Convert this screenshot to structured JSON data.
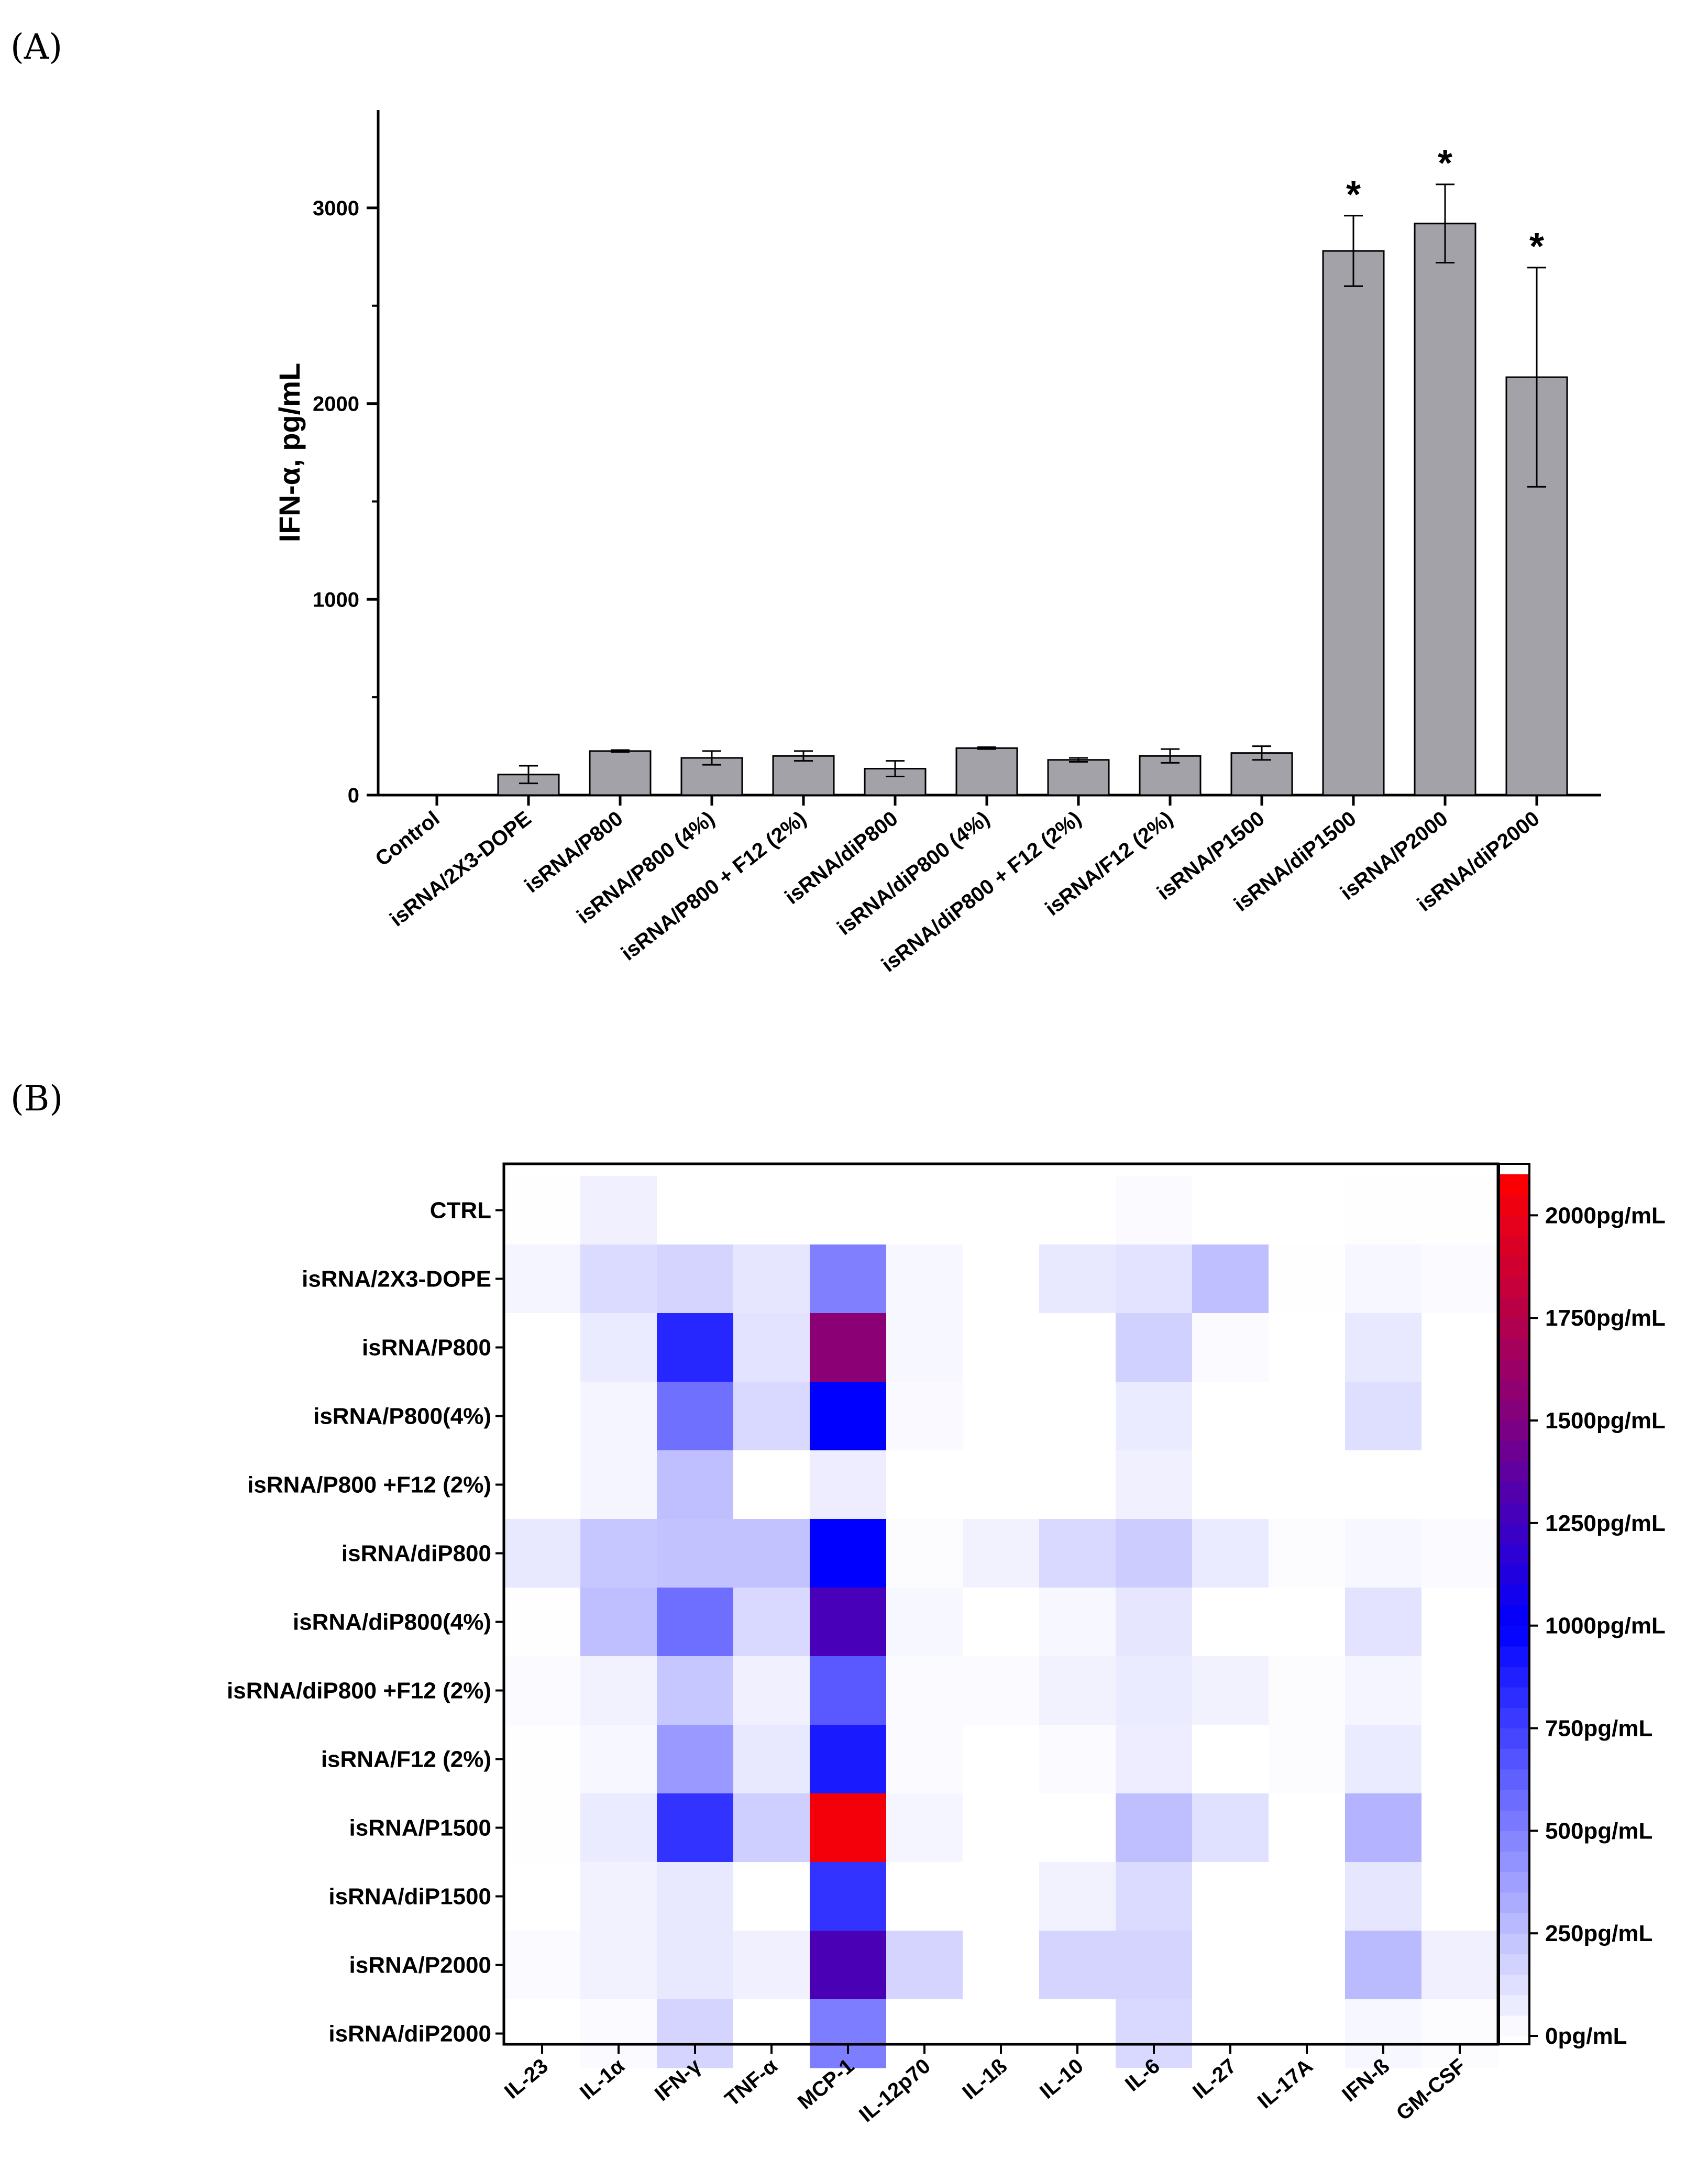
{
  "panel_labels": {
    "a": "(A)",
    "b": "(B)"
  },
  "chart_data": [
    {
      "type": "bar",
      "panel": "(A)",
      "title": "",
      "xlabel": "",
      "ylabel": "IFN-α, pg/mL",
      "ylim": [
        0,
        3500
      ],
      "yticks": [
        "0",
        "1000",
        "2000",
        "3000"
      ],
      "categories": [
        "Control",
        "isRNA/2X3-DOPE",
        "isRNA/P800",
        "isRNA/P800 (4%)",
        "isRNA/P800 + F12 (2%)",
        "isRNA/diP800",
        "isRNA/diP800 (4%)",
        "isRNA/diP800 + F12 (2%)",
        "isRNA/F12 (2%)",
        "isRNA/P1500",
        "isRNA/diP1500",
        "isRNA/P2000",
        "isRNA/diP2000"
      ],
      "values": [
        0,
        105,
        225,
        190,
        200,
        135,
        240,
        180,
        200,
        215,
        2780,
        2920,
        2135
      ],
      "errors": [
        0,
        45,
        5,
        35,
        25,
        40,
        5,
        10,
        35,
        35,
        180,
        200,
        560
      ],
      "significance": [
        "",
        "",
        "",
        "",
        "",
        "",
        "",
        "",
        "",
        "",
        "*",
        "*",
        "*"
      ],
      "bar_color": "#a2a2a8"
    },
    {
      "type": "heatmap",
      "panel": "(B)",
      "title": "",
      "xlabel": "",
      "ylabel": "",
      "rows": [
        "CTRL",
        "isRNA/2X3-DOPE",
        "isRNA/P800",
        "isRNA/P800(4%)",
        "isRNA/P800 +F12 (2%)",
        "isRNA/diP800",
        "isRNA/diP800(4%)",
        "isRNA/diP800 +F12 (2%)",
        "isRNA/F12 (2%)",
        "isRNA/P1500",
        "isRNA/diP1500",
        "isRNA/P2000",
        "isRNA/diP2000"
      ],
      "columns": [
        "IL-23",
        "IL-1α",
        "IFN-γ",
        "TNF-α",
        "MCP-1",
        "IL-12p70",
        "IL-1ß",
        "IL-10",
        "IL-6",
        "IL-27",
        "IL-17A",
        "IFN-ß",
        "GM-CSF"
      ],
      "unit": "pg/mL",
      "range": [
        0,
        2100
      ],
      "values": [
        [
          5,
          60,
          0,
          0,
          0,
          0,
          0,
          0,
          15,
          0,
          0,
          5,
          5
        ],
        [
          40,
          140,
          170,
          100,
          500,
          30,
          0,
          90,
          110,
          250,
          5,
          30,
          20
        ],
        [
          0,
          80,
          850,
          110,
          1550,
          30,
          0,
          0,
          180,
          20,
          0,
          90,
          0
        ],
        [
          0,
          40,
          560,
          150,
          1000,
          25,
          0,
          0,
          80,
          0,
          0,
          130,
          0
        ],
        [
          0,
          40,
          250,
          0,
          70,
          0,
          0,
          0,
          60,
          0,
          0,
          0,
          0
        ],
        [
          90,
          220,
          240,
          240,
          1000,
          10,
          50,
          150,
          200,
          80,
          10,
          30,
          20
        ],
        [
          5,
          250,
          570,
          150,
          1280,
          30,
          0,
          30,
          100,
          0,
          0,
          110,
          0
        ],
        [
          15,
          50,
          220,
          60,
          650,
          20,
          20,
          50,
          80,
          50,
          10,
          40,
          0
        ],
        [
          5,
          30,
          400,
          90,
          900,
          20,
          0,
          20,
          70,
          0,
          10,
          80,
          0
        ],
        [
          5,
          80,
          800,
          190,
          2050,
          40,
          0,
          0,
          250,
          120,
          0,
          300,
          0
        ],
        [
          0,
          50,
          90,
          0,
          800,
          0,
          0,
          50,
          140,
          0,
          0,
          100,
          0
        ],
        [
          20,
          50,
          90,
          60,
          1290,
          170,
          0,
          170,
          170,
          0,
          0,
          270,
          60
        ],
        [
          0,
          20,
          170,
          0,
          510,
          0,
          0,
          0,
          150,
          0,
          0,
          30,
          10
        ]
      ],
      "colorbar": {
        "ticks": [
          "0pg/mL",
          "250pg/mL",
          "500pg/mL",
          "750pg/mL",
          "1000pg/mL",
          "1250pg/mL",
          "1500pg/mL",
          "1750pg/mL",
          "2000pg/mL"
        ],
        "tick_values": [
          0,
          250,
          500,
          750,
          1000,
          1250,
          1500,
          1750,
          2000
        ],
        "stops": [
          {
            "value": 0,
            "color": "#ffffff"
          },
          {
            "value": 1000,
            "color": "#0000ff"
          },
          {
            "value": 1500,
            "color": "#800080"
          },
          {
            "value": 2100,
            "color": "#ff0000"
          }
        ]
      }
    }
  ]
}
